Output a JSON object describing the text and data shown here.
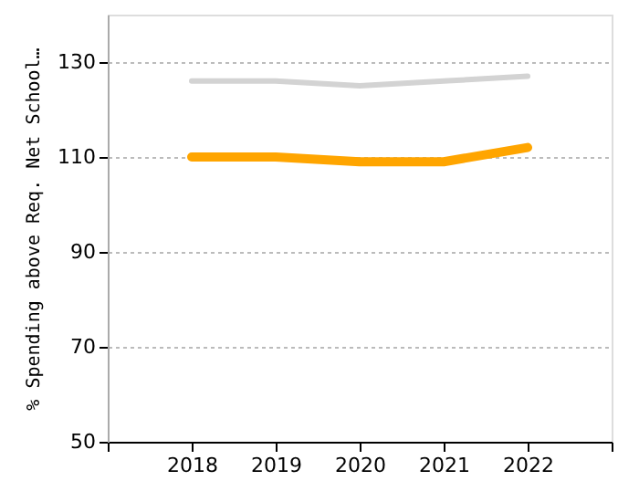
{
  "chart_data": {
    "type": "line",
    "ylabel": "% Spending above Req. Net School…",
    "x": [
      2018,
      2019,
      2020,
      2021,
      2022
    ],
    "series": [
      {
        "color": "#d3d3d3",
        "values": [
          126,
          126,
          125,
          126,
          127
        ]
      },
      {
        "color": "#ffa500",
        "values": [
          110,
          110,
          109,
          109,
          112
        ]
      }
    ],
    "xlim": [
      2017,
      2023
    ],
    "xticks": [
      {
        "value": 2017,
        "label": null
      },
      2018,
      2019,
      2020,
      2021,
      2022,
      {
        "value": 2023,
        "label": null
      }
    ],
    "ylim": [
      50,
      140
    ],
    "yticks": [
      50,
      70,
      90,
      110,
      130
    ],
    "grid": "y",
    "marker": "none",
    "line_style": "solid"
  }
}
